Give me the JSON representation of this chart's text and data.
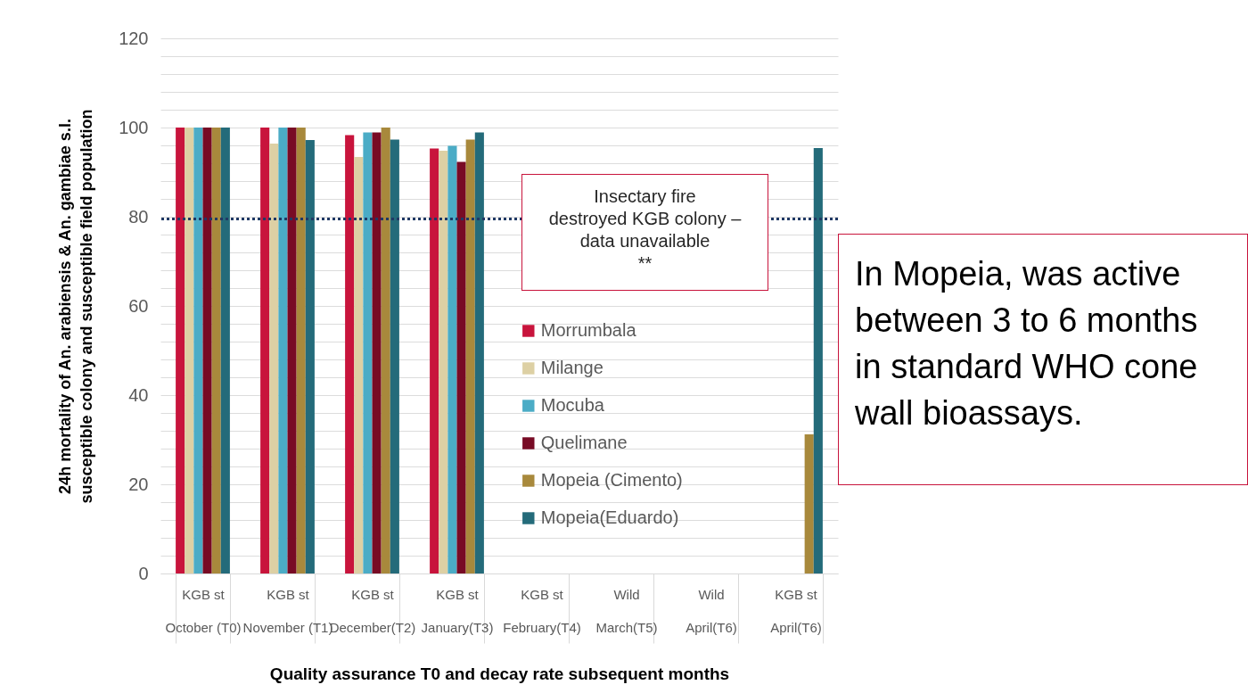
{
  "chart_data": {
    "type": "bar",
    "categories": [
      "KGB st\nOctober (T0)",
      "KGB st\nNovember (T1)",
      "KGB st\nDecember(T2)",
      "KGB st\nJanuary(T3)",
      "KGB st\nFebruary(T4)",
      "Wild\nMarch(T5)",
      "Wild\nApril(T6)",
      "KGB st\nApril(T6)"
    ],
    "series": [
      {
        "name": "Morrumbala",
        "color": "#c8143c",
        "values": [
          100,
          100,
          98.3,
          95.3,
          null,
          null,
          null,
          null
        ]
      },
      {
        "name": "Milange",
        "color": "#ddd0a4",
        "values": [
          100,
          96.4,
          93.4,
          94.8,
          null,
          null,
          null,
          null
        ]
      },
      {
        "name": "Mocuba",
        "color": "#4bacc6",
        "values": [
          100,
          100,
          98.9,
          95.9,
          null,
          null,
          null,
          null
        ]
      },
      {
        "name": "Quelimane",
        "color": "#780b25",
        "values": [
          100,
          100,
          98.9,
          92.3,
          null,
          null,
          null,
          null
        ]
      },
      {
        "name": "Mopeia (Cimento)",
        "color": "#a8893c",
        "values": [
          100,
          100,
          100,
          97.3,
          null,
          null,
          null,
          31.2
        ]
      },
      {
        "name": "Mopeia(Eduardo)",
        "color": "#246b7a",
        "values": [
          100,
          97.2,
          97.3,
          98.9,
          null,
          null,
          null,
          95.4
        ]
      }
    ],
    "xlabel": "Quality assurance T0 and decay rate subsequent months",
    "ylabel": "24h mortality of An. arabiensis & An. gambiae s.l.\nsusceptible colony and susceptible field population",
    "ylim": [
      0,
      120
    ],
    "yticks": [
      0,
      {
        "value": 4,
        "label": null
      },
      {
        "value": 8,
        "label": null
      },
      {
        "value": 12,
        "label": null
      },
      {
        "value": 16,
        "label": null
      },
      20,
      {
        "value": 24,
        "label": null
      },
      {
        "value": 28,
        "label": null
      },
      {
        "value": 32,
        "label": null
      },
      {
        "value": 36,
        "label": null
      },
      40,
      {
        "value": 44,
        "label": null
      },
      {
        "value": 48,
        "label": null
      },
      {
        "value": 52,
        "label": null
      },
      {
        "value": 56,
        "label": null
      },
      60,
      {
        "value": 64,
        "label": null
      },
      {
        "value": 68,
        "label": null
      },
      {
        "value": 72,
        "label": null
      },
      {
        "value": 76,
        "label": null
      },
      80,
      {
        "value": 84,
        "label": null
      },
      {
        "value": 88,
        "label": null
      },
      {
        "value": 92,
        "label": null
      },
      {
        "value": 96,
        "label": null
      },
      100,
      {
        "value": 104,
        "label": null
      },
      {
        "value": 108,
        "label": null
      },
      {
        "value": 112,
        "label": null
      },
      {
        "value": 116,
        "label": null
      },
      120
    ],
    "grid": "y",
    "legend": "right",
    "ref_lines": [
      {
        "axis": "y",
        "value": 79.5,
        "color": "#1f3864",
        "line_style": "dotted"
      }
    ],
    "annotations": [
      "Insectary fire\ndestroyed KGB colony –\ndata unavailable\n**",
      "In Mopeia, was active\nbetween 3 to 6 months\nin standard WHO cone\nwall bioassays."
    ]
  }
}
